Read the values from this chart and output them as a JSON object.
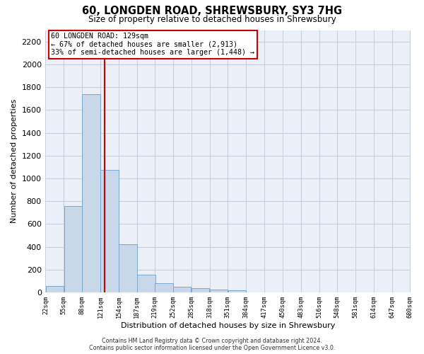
{
  "title": "60, LONGDEN ROAD, SHREWSBURY, SY3 7HG",
  "subtitle": "Size of property relative to detached houses in Shrewsbury",
  "xlabel": "Distribution of detached houses by size in Shrewsbury",
  "ylabel": "Number of detached properties",
  "bar_values": [
    55,
    760,
    1740,
    1075,
    420,
    155,
    80,
    48,
    38,
    28,
    18,
    0,
    0,
    0,
    0,
    0,
    0,
    0,
    0,
    0
  ],
  "bin_starts": [
    22,
    55,
    88,
    121,
    154,
    187,
    219,
    252,
    285,
    318,
    351,
    384,
    417,
    450,
    483,
    516,
    548,
    581,
    614,
    647
  ],
  "bin_labels": [
    "22sqm",
    "55sqm",
    "88sqm",
    "121sqm",
    "154sqm",
    "187sqm",
    "219sqm",
    "252sqm",
    "285sqm",
    "318sqm",
    "351sqm",
    "384sqm",
    "417sqm",
    "450sqm",
    "483sqm",
    "516sqm",
    "548sqm",
    "581sqm",
    "614sqm",
    "647sqm",
    "680sqm"
  ],
  "bar_color": "#c8d8ea",
  "bar_edge_color": "#7aa8cc",
  "grid_color": "#c8d0de",
  "background_color": "#eaeff8",
  "vline_color": "#cc0000",
  "annotation_text": "60 LONGDEN ROAD: 129sqm\n← 67% of detached houses are smaller (2,913)\n33% of semi-detached houses are larger (1,448) →",
  "annotation_box_color": "#ffffff",
  "annotation_border_color": "#cc0000",
  "ylim": [
    0,
    2300
  ],
  "property_sqm": 129,
  "bin_width": 33,
  "yticks": [
    0,
    200,
    400,
    600,
    800,
    1000,
    1200,
    1400,
    1600,
    1800,
    2000,
    2200
  ],
  "footer": "Contains HM Land Registry data © Crown copyright and database right 2024.\nContains public sector information licensed under the Open Government Licence v3.0."
}
